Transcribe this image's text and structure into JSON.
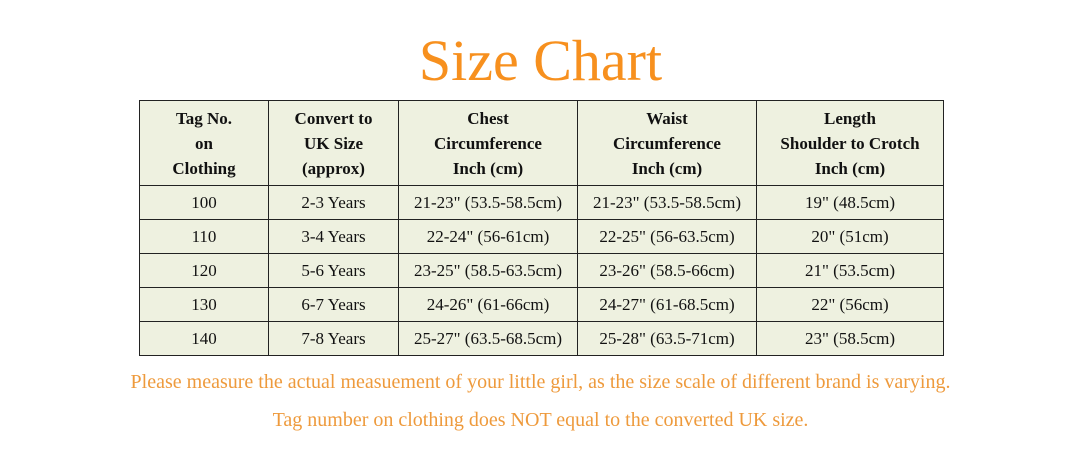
{
  "title": "Size Chart",
  "colors": {
    "title": "#F7901E",
    "note": "#EE9A3C",
    "table_bg": "#EEF1E0"
  },
  "table": {
    "headers": [
      [
        "Tag No.",
        "on",
        "Clothing"
      ],
      [
        "Convert to",
        "UK Size",
        "(approx)"
      ],
      [
        "Chest",
        "Circumference",
        "Inch (cm)"
      ],
      [
        "Waist",
        "Circumference",
        "Inch (cm)"
      ],
      [
        "Length",
        "Shoulder to Crotch",
        "Inch (cm)"
      ]
    ],
    "rows": [
      [
        "100",
        "2-3 Years",
        "21-23\" (53.5-58.5cm)",
        "21-23\" (53.5-58.5cm)",
        "19\" (48.5cm)"
      ],
      [
        "110",
        "3-4 Years",
        "22-24\" (56-61cm)",
        "22-25\" (56-63.5cm)",
        "20\" (51cm)"
      ],
      [
        "120",
        "5-6 Years",
        "23-25\" (58.5-63.5cm)",
        "23-26\" (58.5-66cm)",
        "21\" (53.5cm)"
      ],
      [
        "130",
        "6-7 Years",
        "24-26\" (61-66cm)",
        "24-27\" (61-68.5cm)",
        "22\" (56cm)"
      ],
      [
        "140",
        "7-8 Years",
        "25-27\" (63.5-68.5cm)",
        "25-28\" (63.5-71cm)",
        "23\" (58.5cm)"
      ]
    ]
  },
  "notes": [
    "Please measure the actual measuement of your little girl, as the size scale of different brand is varying.",
    "Tag number on clothing does NOT equal to the converted UK size."
  ]
}
